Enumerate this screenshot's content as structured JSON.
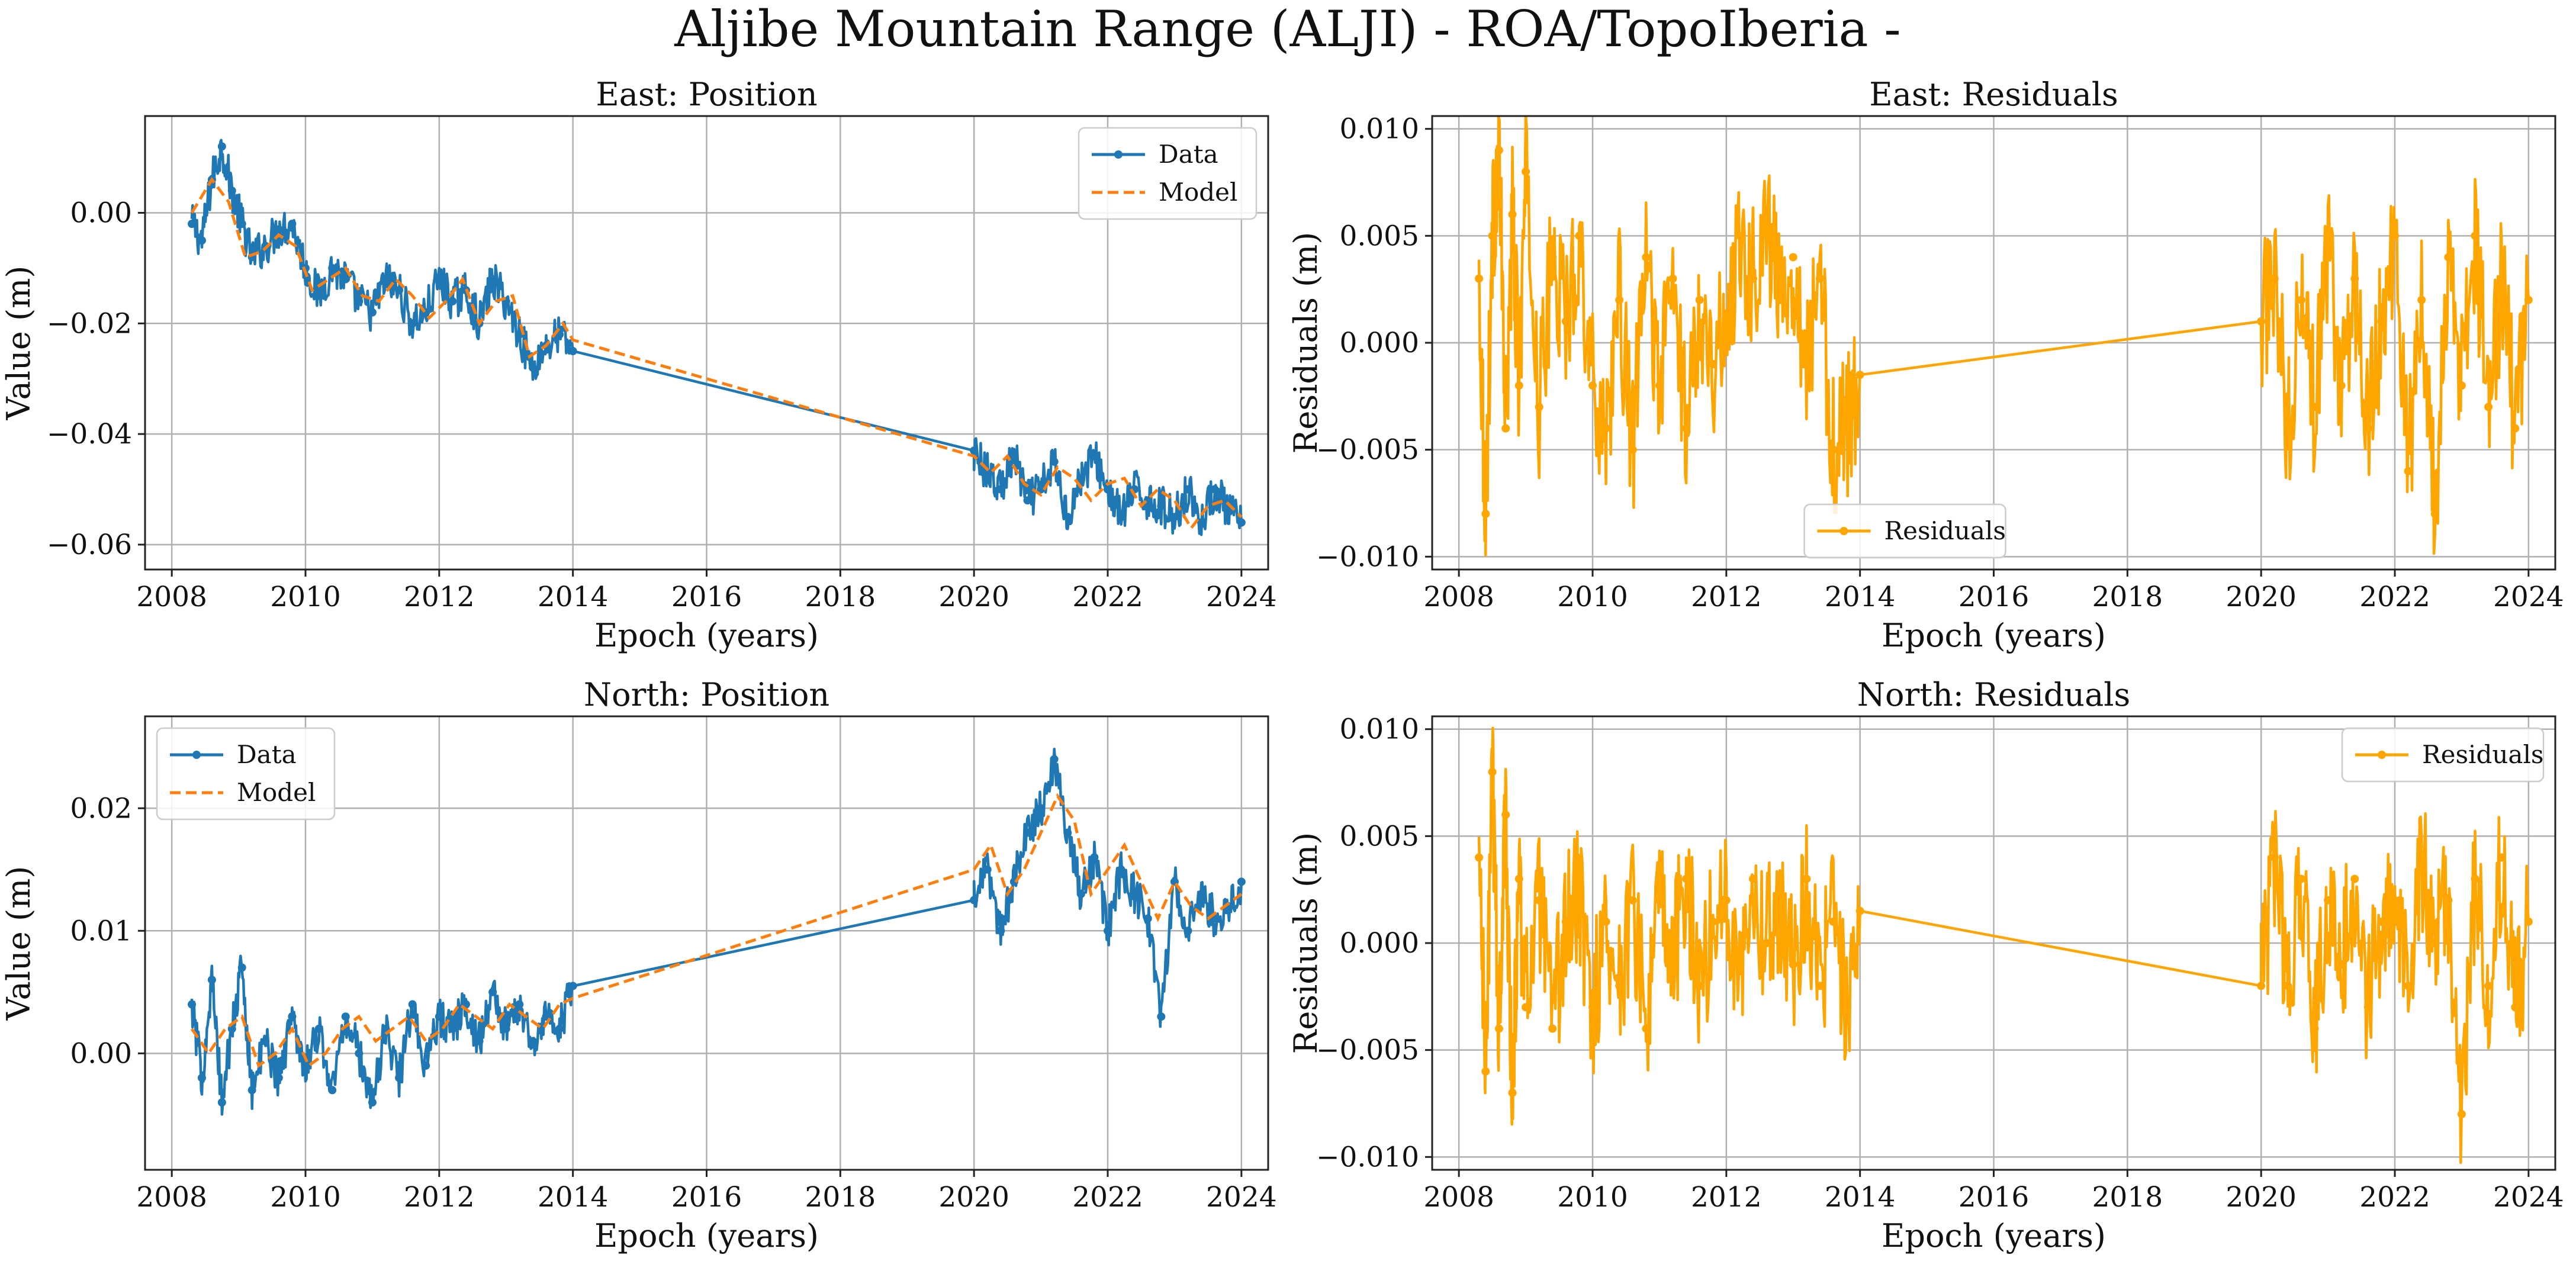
{
  "suptitle": "Aljibe Mountain Range (ALJI) - ROA/TopoIberia -",
  "colors": {
    "data": "#1f77b4",
    "model": "#ff7f0e",
    "residuals": "#ffa500"
  },
  "chart_data": [
    {
      "id": "east-position",
      "type": "line",
      "title": "East: Position",
      "xlabel": "Epoch (years)",
      "ylabel": "Value (m)",
      "xlim": [
        2007.6,
        2024.4
      ],
      "ylim": [
        -0.0645,
        0.0175
      ],
      "xticks": [
        2008,
        2010,
        2012,
        2014,
        2016,
        2018,
        2020,
        2022,
        2024
      ],
      "xtick_labels": [
        "2008",
        "2010",
        "2012",
        "2014",
        "2016",
        "2018",
        "2020",
        "2022",
        "2024"
      ],
      "yticks": [
        0.0,
        -0.02,
        -0.04,
        -0.06
      ],
      "ytick_labels": [
        "0.00",
        "−0.02",
        "−0.04",
        "−0.06"
      ],
      "grid": true,
      "legend": {
        "position": "top-right",
        "entries": [
          "Data",
          "Model"
        ]
      },
      "gap": [
        2014.0,
        2020.0
      ],
      "series": [
        {
          "name": "Data",
          "style": "line-dots",
          "x": [
            2008.3,
            2008.45,
            2008.6,
            2008.75,
            2008.9,
            2009.05,
            2009.2,
            2009.4,
            2009.6,
            2009.8,
            2010.0,
            2010.2,
            2010.4,
            2010.6,
            2010.8,
            2011.0,
            2011.2,
            2011.4,
            2011.6,
            2011.8,
            2012.0,
            2012.2,
            2012.4,
            2012.6,
            2012.8,
            2013.0,
            2013.2,
            2013.4,
            2013.6,
            2013.8,
            2014.0,
            2020.0,
            2020.2,
            2020.4,
            2020.6,
            2020.8,
            2021.0,
            2021.2,
            2021.4,
            2021.6,
            2021.8,
            2022.0,
            2022.2,
            2022.4,
            2022.6,
            2022.8,
            2023.0,
            2023.2,
            2023.4,
            2023.6,
            2023.8,
            2024.0
          ],
          "y": [
            -0.002,
            -0.005,
            0.006,
            0.012,
            0.004,
            -0.002,
            -0.008,
            -0.006,
            -0.003,
            -0.002,
            -0.01,
            -0.015,
            -0.01,
            -0.012,
            -0.016,
            -0.018,
            -0.012,
            -0.014,
            -0.02,
            -0.018,
            -0.012,
            -0.016,
            -0.014,
            -0.02,
            -0.012,
            -0.016,
            -0.022,
            -0.028,
            -0.024,
            -0.022,
            -0.025,
            -0.043,
            -0.047,
            -0.05,
            -0.044,
            -0.052,
            -0.05,
            -0.045,
            -0.055,
            -0.048,
            -0.044,
            -0.05,
            -0.055,
            -0.05,
            -0.052,
            -0.053,
            -0.055,
            -0.05,
            -0.056,
            -0.05,
            -0.054,
            -0.056
          ]
        },
        {
          "name": "Model",
          "style": "dashed",
          "x": [
            2008.3,
            2008.6,
            2008.85,
            2009.1,
            2009.35,
            2009.6,
            2009.85,
            2010.1,
            2010.35,
            2010.6,
            2010.85,
            2011.1,
            2011.35,
            2011.6,
            2011.85,
            2012.1,
            2012.35,
            2012.6,
            2012.85,
            2013.1,
            2013.35,
            2013.6,
            2013.85,
            2014.0,
            2020.0,
            2020.25,
            2020.5,
            2020.75,
            2021.0,
            2021.25,
            2021.5,
            2021.75,
            2022.0,
            2022.25,
            2022.5,
            2022.75,
            2023.0,
            2023.25,
            2023.5,
            2023.75,
            2024.0
          ],
          "y": [
            0.0,
            0.006,
            0.002,
            -0.008,
            -0.007,
            -0.004,
            -0.006,
            -0.014,
            -0.012,
            -0.01,
            -0.015,
            -0.016,
            -0.012,
            -0.015,
            -0.019,
            -0.016,
            -0.012,
            -0.02,
            -0.016,
            -0.015,
            -0.026,
            -0.024,
            -0.02,
            -0.023,
            -0.044,
            -0.047,
            -0.044,
            -0.049,
            -0.051,
            -0.046,
            -0.048,
            -0.052,
            -0.049,
            -0.048,
            -0.053,
            -0.05,
            -0.052,
            -0.057,
            -0.053,
            -0.052,
            -0.055
          ]
        }
      ]
    },
    {
      "id": "east-residuals",
      "type": "line",
      "title": "East: Residuals",
      "xlabel": "Epoch (years)",
      "ylabel": "Residuals (m)",
      "xlim": [
        2007.6,
        2024.4
      ],
      "ylim": [
        -0.0106,
        0.0106
      ],
      "xticks": [
        2008,
        2010,
        2012,
        2014,
        2016,
        2018,
        2020,
        2022,
        2024
      ],
      "xtick_labels": [
        "2008",
        "2010",
        "2012",
        "2014",
        "2016",
        "2018",
        "2020",
        "2022",
        "2024"
      ],
      "yticks": [
        0.01,
        0.005,
        0.0,
        -0.005,
        -0.01
      ],
      "ytick_labels": [
        "0.010",
        "0.005",
        "0.000",
        "−0.005",
        "−0.010"
      ],
      "grid": true,
      "legend": {
        "position": "bottom-center",
        "entries": [
          "Residuals"
        ]
      },
      "gap": [
        2014.0,
        2020.0
      ],
      "series": [
        {
          "name": "Residuals",
          "style": "line-dots",
          "x": [
            2008.3,
            2008.4,
            2008.5,
            2008.6,
            2008.7,
            2008.8,
            2008.9,
            2009.0,
            2009.2,
            2009.4,
            2009.6,
            2009.8,
            2010.0,
            2010.2,
            2010.4,
            2010.6,
            2010.8,
            2011.0,
            2011.2,
            2011.4,
            2011.6,
            2011.8,
            2012.0,
            2012.2,
            2012.4,
            2012.6,
            2012.8,
            2013.0,
            2013.2,
            2013.4,
            2013.6,
            2013.8,
            2014.0,
            2020.0,
            2020.2,
            2020.4,
            2020.6,
            2020.8,
            2021.0,
            2021.2,
            2021.4,
            2021.6,
            2021.8,
            2022.0,
            2022.2,
            2022.4,
            2022.6,
            2022.8,
            2023.0,
            2023.2,
            2023.4,
            2023.6,
            2023.8,
            2024.0
          ],
          "y": [
            0.003,
            -0.008,
            0.005,
            0.009,
            -0.004,
            0.006,
            -0.002,
            0.008,
            -0.003,
            0.004,
            0.001,
            0.005,
            -0.002,
            -0.004,
            0.002,
            -0.005,
            0.004,
            -0.002,
            0.003,
            -0.004,
            0.002,
            -0.001,
            0.001,
            0.005,
            0.003,
            0.006,
            0.002,
            0.004,
            -0.001,
            0.003,
            -0.005,
            -0.004,
            -0.0015,
            0.001,
            0.003,
            -0.004,
            0.002,
            -0.003,
            0.004,
            -0.002,
            0.003,
            -0.004,
            0.001,
            0.005,
            -0.006,
            0.002,
            -0.008,
            0.004,
            -0.002,
            0.005,
            -0.003,
            0.003,
            -0.004,
            0.002
          ]
        }
      ]
    },
    {
      "id": "north-position",
      "type": "line",
      "title": "North: Position",
      "xlabel": "Epoch (years)",
      "ylabel": "Value (m)",
      "xlim": [
        2007.6,
        2024.4
      ],
      "ylim": [
        -0.0095,
        0.0275
      ],
      "xticks": [
        2008,
        2010,
        2012,
        2014,
        2016,
        2018,
        2020,
        2022,
        2024
      ],
      "xtick_labels": [
        "2008",
        "2010",
        "2012",
        "2014",
        "2016",
        "2018",
        "2020",
        "2022",
        "2024"
      ],
      "yticks": [
        0.02,
        0.01,
        0.0
      ],
      "ytick_labels": [
        "0.02",
        "0.01",
        "0.00"
      ],
      "grid": true,
      "legend": {
        "position": "top-left",
        "entries": [
          "Data",
          "Model"
        ]
      },
      "gap": [
        2014.0,
        2020.0
      ],
      "series": [
        {
          "name": "Data",
          "style": "line-dots",
          "x": [
            2008.3,
            2008.45,
            2008.6,
            2008.75,
            2008.9,
            2009.05,
            2009.2,
            2009.4,
            2009.6,
            2009.8,
            2010.0,
            2010.2,
            2010.4,
            2010.6,
            2010.8,
            2011.0,
            2011.2,
            2011.4,
            2011.6,
            2011.8,
            2012.0,
            2012.2,
            2012.4,
            2012.6,
            2012.8,
            2013.0,
            2013.2,
            2013.4,
            2013.6,
            2013.8,
            2014.0,
            2020.0,
            2020.2,
            2020.4,
            2020.6,
            2020.8,
            2021.0,
            2021.2,
            2021.4,
            2021.6,
            2021.8,
            2022.0,
            2022.2,
            2022.4,
            2022.6,
            2022.8,
            2023.0,
            2023.2,
            2023.4,
            2023.6,
            2023.8,
            2024.0
          ],
          "y": [
            0.004,
            -0.002,
            0.006,
            -0.004,
            0.002,
            0.007,
            -0.003,
            0.001,
            -0.002,
            0.003,
            -0.001,
            0.002,
            -0.003,
            0.003,
            0.0,
            -0.004,
            0.002,
            -0.002,
            0.004,
            -0.001,
            0.003,
            0.002,
            0.004,
            0.001,
            0.005,
            0.002,
            0.004,
            0.001,
            0.003,
            0.002,
            0.0055,
            0.0125,
            0.015,
            0.01,
            0.014,
            0.018,
            0.02,
            0.024,
            0.018,
            0.013,
            0.016,
            0.01,
            0.015,
            0.013,
            0.011,
            0.003,
            0.014,
            0.01,
            0.013,
            0.011,
            0.012,
            0.014
          ]
        },
        {
          "name": "Model",
          "style": "dashed",
          "x": [
            2008.3,
            2008.55,
            2008.8,
            2009.05,
            2009.3,
            2009.55,
            2009.8,
            2010.05,
            2010.3,
            2010.55,
            2010.8,
            2011.05,
            2011.3,
            2011.55,
            2011.8,
            2012.05,
            2012.3,
            2012.55,
            2012.8,
            2013.05,
            2013.3,
            2013.55,
            2013.8,
            2014.0,
            2020.0,
            2020.25,
            2020.5,
            2020.75,
            2021.0,
            2021.25,
            2021.5,
            2021.75,
            2022.0,
            2022.25,
            2022.5,
            2022.75,
            2023.0,
            2023.25,
            2023.5,
            2023.75,
            2024.0
          ],
          "y": [
            0.002,
            0.0,
            0.002,
            0.003,
            -0.001,
            0.0,
            0.002,
            -0.001,
            0.0,
            0.002,
            0.003,
            0.001,
            0.002,
            0.003,
            0.001,
            0.002,
            0.004,
            0.003,
            0.002,
            0.004,
            0.003,
            0.002,
            0.004,
            0.0045,
            0.015,
            0.017,
            0.013,
            0.015,
            0.018,
            0.021,
            0.019,
            0.013,
            0.015,
            0.017,
            0.014,
            0.011,
            0.014,
            0.012,
            0.011,
            0.012,
            0.013
          ]
        }
      ]
    },
    {
      "id": "north-residuals",
      "type": "line",
      "title": "North: Residuals",
      "xlabel": "Epoch (years)",
      "ylabel": "Residuals (m)",
      "xlim": [
        2007.6,
        2024.4
      ],
      "ylim": [
        -0.0106,
        0.0106
      ],
      "xticks": [
        2008,
        2010,
        2012,
        2014,
        2016,
        2018,
        2020,
        2022,
        2024
      ],
      "xtick_labels": [
        "2008",
        "2010",
        "2012",
        "2014",
        "2016",
        "2018",
        "2020",
        "2022",
        "2024"
      ],
      "yticks": [
        0.01,
        0.005,
        0.0,
        -0.005,
        -0.01
      ],
      "ytick_labels": [
        "0.010",
        "0.005",
        "0.000",
        "−0.005",
        "−0.010"
      ],
      "grid": true,
      "legend": {
        "position": "top-right",
        "entries": [
          "Residuals"
        ]
      },
      "gap": [
        2014.0,
        2020.0
      ],
      "series": [
        {
          "name": "Residuals",
          "style": "line-dots",
          "x": [
            2008.3,
            2008.4,
            2008.5,
            2008.6,
            2008.7,
            2008.8,
            2008.9,
            2009.0,
            2009.2,
            2009.4,
            2009.6,
            2009.8,
            2010.0,
            2010.2,
            2010.4,
            2010.6,
            2010.8,
            2011.0,
            2011.2,
            2011.4,
            2011.6,
            2011.8,
            2012.0,
            2012.2,
            2012.4,
            2012.6,
            2012.8,
            2013.0,
            2013.2,
            2013.4,
            2013.6,
            2013.8,
            2014.0,
            2020.0,
            2020.2,
            2020.4,
            2020.6,
            2020.8,
            2021.0,
            2021.2,
            2021.4,
            2021.6,
            2021.8,
            2022.0,
            2022.2,
            2022.4,
            2022.6,
            2022.8,
            2023.0,
            2023.2,
            2023.4,
            2023.6,
            2023.8,
            2024.0
          ],
          "y": [
            0.004,
            -0.006,
            0.008,
            -0.004,
            0.006,
            -0.007,
            0.003,
            -0.003,
            0.002,
            -0.004,
            0.001,
            0.002,
            -0.003,
            0.001,
            -0.002,
            0.002,
            -0.004,
            0.002,
            -0.001,
            0.003,
            -0.002,
            0.001,
            0.002,
            -0.001,
            0.003,
            0.0,
            0.002,
            -0.001,
            0.003,
            -0.002,
            0.001,
            -0.003,
            0.0015,
            -0.002,
            0.004,
            -0.002,
            0.003,
            -0.004,
            0.002,
            -0.001,
            0.003,
            -0.003,
            0.001,
            0.002,
            -0.002,
            0.004,
            0.0,
            0.002,
            -0.008,
            0.003,
            -0.002,
            0.004,
            -0.003,
            0.001
          ]
        }
      ]
    }
  ]
}
